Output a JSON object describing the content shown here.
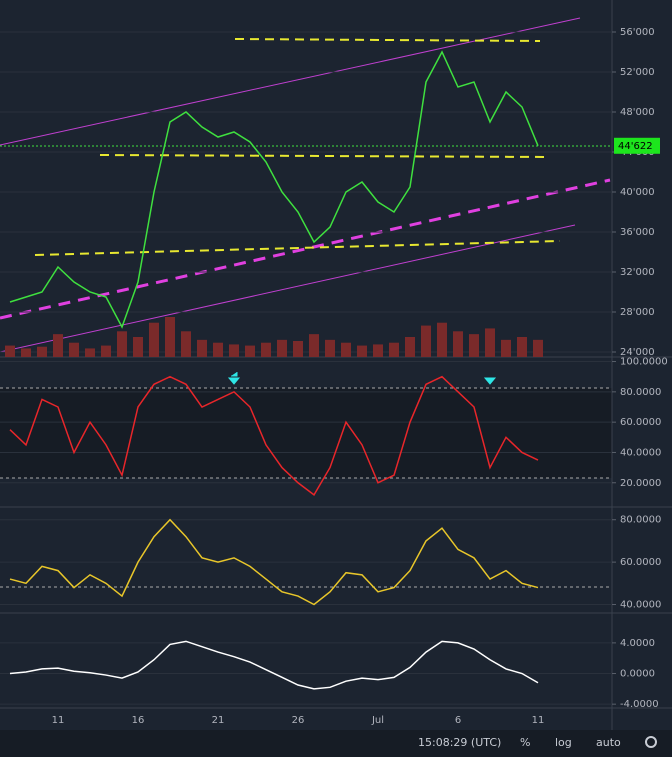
{
  "chart_data": [
    {
      "type": "line",
      "color": "#3fe03f",
      "categories": [
        null,
        null,
        null,
        "11",
        null,
        null,
        null,
        null,
        "16",
        null,
        null,
        null,
        null,
        "21",
        null,
        null,
        null,
        null,
        "26",
        null,
        null,
        null,
        null,
        "Jul",
        null,
        null,
        null,
        null,
        "6",
        null,
        null,
        null,
        null,
        "11"
      ],
      "values": [
        29000,
        29500,
        30000,
        32500,
        31000,
        30000,
        29500,
        26500,
        31000,
        40000,
        47000,
        48000,
        46500,
        45500,
        46000,
        45000,
        43000,
        40000,
        38000,
        35000,
        36500,
        40000,
        41000,
        39000,
        38000,
        40500,
        51000,
        54000,
        50500,
        51000,
        47000,
        50000,
        48500,
        44622
      ],
      "volume": [
        20,
        15,
        18,
        40,
        25,
        15,
        20,
        45,
        35,
        60,
        70,
        45,
        30,
        25,
        22,
        20,
        25,
        30,
        28,
        40,
        30,
        25,
        20,
        22,
        25,
        35,
        55,
        60,
        45,
        40,
        50,
        30,
        35,
        30
      ],
      "volume_color": "#7a2a2a",
      "ylim": [
        23500,
        59200
      ],
      "yticks": [
        {
          "value": 24000,
          "label": "24'000"
        },
        {
          "value": 28000,
          "label": "28'000"
        },
        {
          "value": 32000,
          "label": "32'000"
        },
        {
          "value": 36000,
          "label": "36'000"
        },
        {
          "value": 40000,
          "label": "40'000"
        },
        {
          "value": 44000,
          "label": "44'000"
        },
        {
          "value": 48000,
          "label": "48'000"
        },
        {
          "value": 52000,
          "label": "52'000"
        },
        {
          "value": 56000,
          "label": "56'000"
        }
      ],
      "price_marker": {
        "value": 44622,
        "label": "44'622"
      },
      "log": false,
      "grid": true
    },
    {
      "type": "line",
      "color": "#e8262a",
      "values": [
        55,
        45,
        75,
        70,
        40,
        60,
        45,
        25,
        70,
        85,
        90,
        85,
        70,
        75,
        80,
        70,
        45,
        30,
        20,
        12,
        30,
        60,
        45,
        20,
        25,
        60,
        85,
        90,
        80,
        70,
        30,
        50,
        40,
        35
      ],
      "ylim": [
        4,
        103
      ],
      "yticks": [
        {
          "value": 20,
          "label": "20.0000"
        },
        {
          "value": 40,
          "label": "40.0000"
        },
        {
          "value": 60,
          "label": "60.0000"
        },
        {
          "value": 80,
          "label": "80.0000"
        },
        {
          "value": 100,
          "label": "100.0000"
        }
      ],
      "grid": true
    },
    {
      "type": "line",
      "color": "#e8c62a",
      "values": [
        52,
        50,
        58,
        56,
        48,
        54,
        50,
        44,
        60,
        72,
        80,
        72,
        62,
        60,
        62,
        58,
        52,
        46,
        44,
        40,
        46,
        55,
        54,
        46,
        48,
        56,
        70,
        76,
        66,
        62,
        52,
        56,
        50,
        48
      ],
      "ylim": [
        36,
        86
      ],
      "yticks": [
        {
          "value": 40,
          "label": "40.0000"
        },
        {
          "value": 60,
          "label": "60.0000"
        },
        {
          "value": 80,
          "label": "80.0000"
        }
      ],
      "grid": true
    },
    {
      "type": "line",
      "color": "#ffffff",
      "values": [
        0,
        0.2,
        0.6,
        0.7,
        0.3,
        0.1,
        -0.2,
        -0.6,
        0.2,
        1.8,
        3.8,
        4.2,
        3.5,
        2.8,
        2.2,
        1.5,
        0.5,
        -0.5,
        -1.5,
        -2.0,
        -1.8,
        -1.0,
        -0.6,
        -0.8,
        -0.5,
        0.8,
        2.8,
        4.2,
        4.0,
        3.2,
        1.8,
        0.6,
        0,
        -1.2
      ],
      "ylim": [
        -4.5,
        7.9
      ],
      "yticks": [
        {
          "value": -4,
          "label": "-4.0000"
        },
        {
          "value": 0,
          "label": "0.0000"
        },
        {
          "value": 4,
          "label": "4.0000"
        }
      ],
      "grid": true
    }
  ],
  "toolbar": {
    "clock": "15:08:29 (UTC)",
    "percent": "%",
    "log": "log",
    "auto": "auto"
  }
}
